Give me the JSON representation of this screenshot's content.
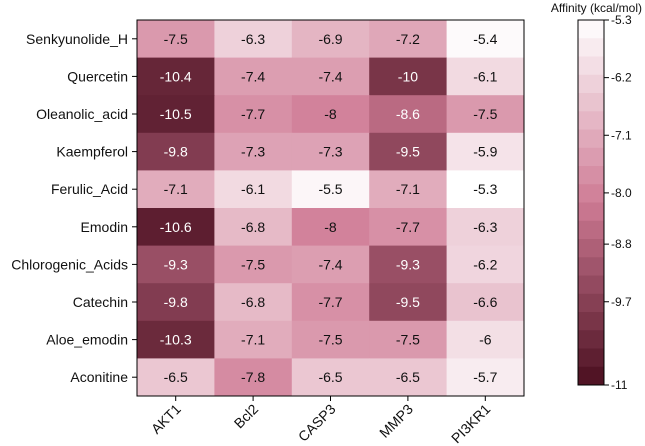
{
  "chart_data": {
    "type": "heatmap",
    "title": "",
    "rows": [
      "Senkyunolide_H",
      "Quercetin",
      "Oleanolic_acid",
      "Kaempferol",
      "Ferulic_Acid",
      "Emodin",
      "Chlorogenic_Acids",
      "Catechin",
      "Aloe_emodin",
      "Aconitine"
    ],
    "columns": [
      "AKT1",
      "Bcl2",
      "CASP3",
      "MMP3",
      "PI3KR1"
    ],
    "values": [
      [
        -7.5,
        -6.3,
        -6.9,
        -7.2,
        -5.4
      ],
      [
        -10.4,
        -7.4,
        -7.4,
        -10,
        -6.1
      ],
      [
        -10.5,
        -7.7,
        -8,
        -8.6,
        -7.5
      ],
      [
        -9.8,
        -7.3,
        -7.3,
        -9.5,
        -5.9
      ],
      [
        -7.1,
        -6.1,
        -5.5,
        -7.1,
        -5.3
      ],
      [
        -10.6,
        -6.8,
        -8,
        -7.7,
        -6.3
      ],
      [
        -9.3,
        -7.5,
        -7.4,
        -9.3,
        -6.2
      ],
      [
        -9.8,
        -6.8,
        -7.7,
        -9.5,
        -6.6
      ],
      [
        -10.3,
        -7.1,
        -7.5,
        -7.5,
        -6
      ],
      [
        -6.5,
        -7.8,
        -6.5,
        -6.5,
        -5.7
      ]
    ],
    "colorbar": {
      "title": "Affinity (kcal/mol)",
      "min": -11,
      "max": -5.3,
      "ticks": [
        -5.3,
        -6.2,
        -7.1,
        -8.0,
        -8.8,
        -9.7,
        -11
      ],
      "tick_labels": [
        "-5.3",
        "-6.2",
        "-7.1",
        "-8.0",
        "-8.8",
        "-9.7",
        "-11"
      ],
      "color_high": "#ffffff",
      "color_mid": "#cf7b95",
      "color_low": "#4a0f1f"
    }
  }
}
